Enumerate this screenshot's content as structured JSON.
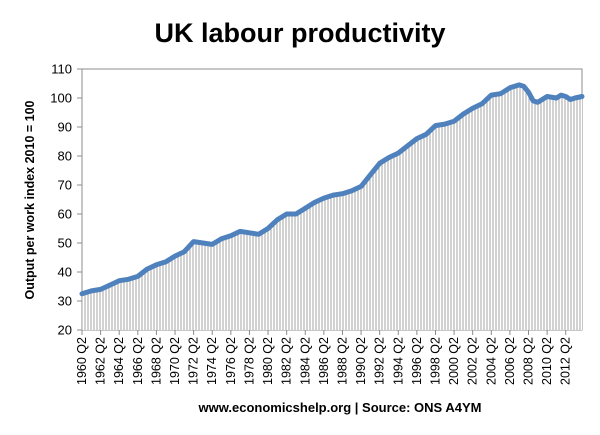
{
  "chart_data": {
    "type": "area",
    "title": "UK labour productivity",
    "ylabel": "Output per work index 2010 = 100",
    "xlabel": "",
    "footer": "www.economicshelp.org | Source: ONS A4YM",
    "ylim": [
      20,
      110
    ],
    "yticks": [
      20,
      30,
      40,
      50,
      60,
      70,
      80,
      90,
      100,
      110
    ],
    "x_tick_labels": [
      "1960 Q2",
      "1962 Q2",
      "1964 Q2",
      "1966 Q2",
      "1968 Q2",
      "1970 Q2",
      "1972 Q2",
      "1974 Q2",
      "1976 Q2",
      "1978 Q2",
      "1980 Q2",
      "1982 Q2",
      "1984 Q2",
      "1986 Q2",
      "1988 Q2",
      "1990 Q2",
      "1992 Q2",
      "1994 Q2",
      "1996 Q2",
      "1998 Q2",
      "2000 Q2",
      "2002 Q2",
      "2004 Q2",
      "2006 Q2",
      "2008 Q2",
      "2010 Q2",
      "2012 Q2"
    ],
    "x_range": [
      1960.125,
      2013.875
    ],
    "grid": false,
    "legend": "none",
    "line_color": "#4f81bd",
    "fill_pattern_color": "#a6a6a6",
    "series": [
      {
        "x": [
          1960.125,
          1961.125,
          1962.125,
          1963.125,
          1964.125,
          1965.125,
          1966.125,
          1967.125,
          1968.125,
          1969.125,
          1970.125,
          1971.125,
          1972.125,
          1973.125,
          1974.125,
          1975.125,
          1976.125,
          1977.125,
          1978.125,
          1979.125,
          1980.125,
          1981.125,
          1982.125,
          1983.125,
          1984.125,
          1985.125,
          1986.125,
          1987.125,
          1988.125,
          1989.125,
          1990.125,
          1991.125,
          1992.125,
          1993.125,
          1994.125,
          1995.125,
          1996.125,
          1997.125,
          1998.125,
          1999.125,
          2000.125,
          2001.125,
          2002.125,
          2003.125,
          2004.125,
          2005.125,
          2006.125,
          2007.125,
          2007.625,
          2008.125,
          2008.625,
          2009.125,
          2010.125,
          2011.125,
          2011.625,
          2012.125,
          2012.625,
          2013.125,
          2013.875
        ],
        "values": [
          32.5,
          33.5,
          34,
          35.5,
          37,
          37.5,
          38.5,
          41,
          42.5,
          43.5,
          45.5,
          47,
          50.5,
          50,
          49.5,
          51.5,
          52.5,
          54,
          53.5,
          53,
          55,
          58,
          60,
          60,
          62,
          64,
          65.5,
          66.5,
          67,
          68,
          69.5,
          73.5,
          77.5,
          79.5,
          81,
          83.5,
          86,
          87.5,
          90.5,
          91,
          92,
          94.5,
          96.5,
          98,
          101,
          101.5,
          103.5,
          104.5,
          104,
          102,
          99,
          98.5,
          100.5,
          100,
          101,
          100.5,
          99.5,
          100,
          100.5
        ]
      }
    ]
  }
}
